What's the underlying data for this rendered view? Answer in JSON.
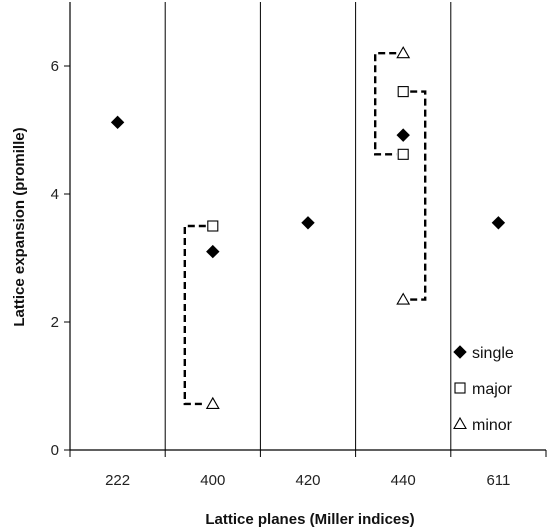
{
  "chart_data": {
    "type": "scatter",
    "title": "",
    "xlabel": "Lattice planes (Miller indices)",
    "ylabel": "Lattice expansion (promille)",
    "categories": [
      "222",
      "400",
      "420",
      "440",
      "611"
    ],
    "ylim": [
      0,
      7
    ],
    "yticks": [
      0,
      2,
      4,
      6
    ],
    "grid": false,
    "legend_position": "bottom-right",
    "series": [
      {
        "name": "single",
        "marker": "diamond",
        "points": [
          {
            "category": "222",
            "y": 5.12
          },
          {
            "category": "400",
            "y": 3.1
          },
          {
            "category": "420",
            "y": 3.55
          },
          {
            "category": "440",
            "y": 4.92
          },
          {
            "category": "611",
            "y": 3.55
          }
        ]
      },
      {
        "name": "major",
        "marker": "square",
        "points": [
          {
            "category": "400",
            "y": 3.5
          },
          {
            "category": "440",
            "y": 5.6
          },
          {
            "category": "440",
            "y": 4.62
          }
        ]
      },
      {
        "name": "minor",
        "marker": "triangle",
        "points": [
          {
            "category": "400",
            "y": 0.72
          },
          {
            "category": "440",
            "y": 6.2
          },
          {
            "category": "440",
            "y": 2.35
          }
        ]
      }
    ],
    "brackets": [
      {
        "category": "400",
        "y_range": [
          0.72,
          3.5
        ],
        "side": "left"
      },
      {
        "category": "440",
        "y_range": [
          4.62,
          6.2
        ],
        "side": "left"
      },
      {
        "category": "440",
        "y_range": [
          2.35,
          5.6
        ],
        "side": "right"
      }
    ],
    "colors": {
      "marker_fill": "#000000",
      "axis": "#000000"
    }
  }
}
